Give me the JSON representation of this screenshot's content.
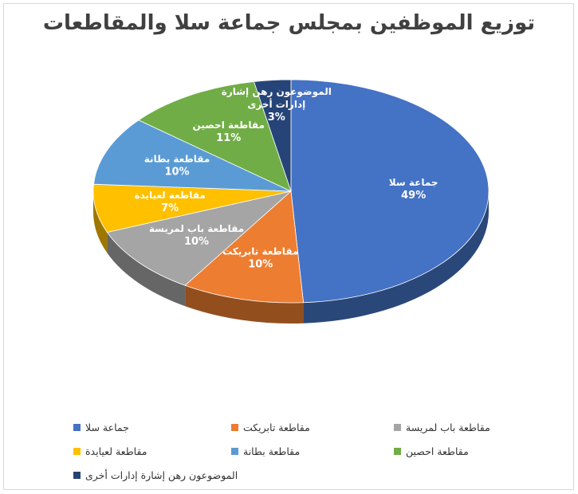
{
  "chart_data": {
    "type": "pie",
    "title": "توزيع الموظفين بمجلس جماعة سلا والمقاطعات",
    "labels": [
      "جماعة سلا",
      "مقاطعة تابريكت",
      "مقاطعة  باب لمريسة",
      "مقاطعة  لعيايدة",
      "مقاطعة  بطانة",
      "مقاطعة  احصين",
      "الموضوعون رهن إشارة إدارات أخرى"
    ],
    "values": [
      49,
      10,
      10,
      7,
      10,
      11,
      3
    ],
    "value_labels": [
      "49%",
      "10%",
      "10%",
      "7%",
      "10%",
      "11%",
      "3%"
    ],
    "slice_text": [
      [
        "جماعة سلا"
      ],
      [
        "مقاطعة تابريكت"
      ],
      [
        "مقاطعة  باب لمريسة"
      ],
      [
        "مقاطعة  لعيايدة"
      ],
      [
        "مقاطعة  بطانة"
      ],
      [
        "مقاطعة  احصين"
      ],
      [
        "الموضوعون رهن إشارة",
        "إدارات أخرى"
      ]
    ],
    "colors": [
      "#4472C4",
      "#ED7D31",
      "#A5A5A5",
      "#FFC000",
      "#5B9BD5",
      "#70AD47",
      "#264478"
    ],
    "legend_position": "bottom",
    "style": "3d-pie"
  }
}
